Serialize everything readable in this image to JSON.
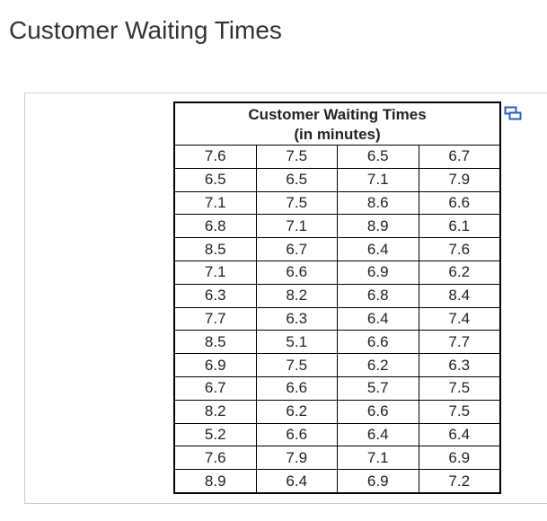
{
  "title": "Customer Waiting Times",
  "table": {
    "caption": [
      "Customer Waiting Times",
      "(in minutes)"
    ],
    "rows": [
      [
        7.6,
        7.5,
        6.5,
        6.7
      ],
      [
        6.5,
        6.5,
        7.1,
        7.9
      ],
      [
        7.1,
        7.5,
        8.6,
        6.6
      ],
      [
        6.8,
        7.1,
        8.9,
        6.1
      ],
      [
        8.5,
        6.7,
        6.4,
        7.6
      ],
      [
        7.1,
        6.6,
        6.9,
        6.2
      ],
      [
        6.3,
        8.2,
        6.8,
        8.4
      ],
      [
        7.7,
        6.3,
        6.4,
        7.4
      ],
      [
        8.5,
        5.1,
        6.6,
        7.7
      ],
      [
        6.9,
        7.5,
        6.2,
        6.3
      ],
      [
        6.7,
        6.6,
        5.7,
        7.5
      ],
      [
        8.2,
        6.2,
        6.6,
        7.5
      ],
      [
        5.2,
        6.6,
        6.4,
        6.4
      ],
      [
        7.6,
        7.9,
        7.1,
        6.9
      ],
      [
        8.9,
        6.4,
        6.9,
        7.2
      ]
    ]
  }
}
